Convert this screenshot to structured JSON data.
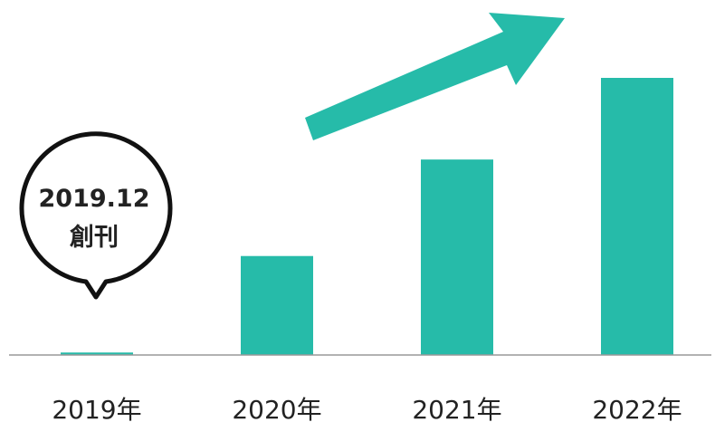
{
  "chart_data": {
    "type": "bar",
    "categories": [
      "2019年",
      "2020年",
      "2021年",
      "2022年"
    ],
    "values": [
      1,
      40,
      79,
      112
    ],
    "title": "",
    "xlabel": "",
    "ylabel": "",
    "ylim": [
      0,
      112
    ],
    "grid": false,
    "legend": "none",
    "trend_arrow": true,
    "annotation": {
      "line1": "2019.12",
      "line2": "創刊"
    }
  },
  "colors": {
    "bar": "#26bba9",
    "baseline": "#999999",
    "text": "#222222",
    "callout_border": "#111111"
  }
}
